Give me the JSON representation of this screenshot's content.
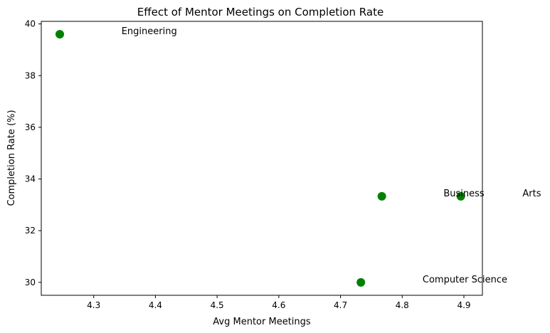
{
  "chart_data": {
    "type": "scatter",
    "title": "Effect of Mentor Meetings on Completion Rate",
    "xlabel": "Avg Mentor Meetings",
    "ylabel": "Completion Rate (%)",
    "xlim": [
      4.215,
      4.93
    ],
    "ylim": [
      29.5,
      40.1
    ],
    "xticks": [
      4.3,
      4.4,
      4.5,
      4.6,
      4.7,
      4.8,
      4.9
    ],
    "yticks": [
      30,
      32,
      34,
      36,
      38,
      40
    ],
    "xtick_labels": [
      "4.3",
      "4.4",
      "4.5",
      "4.6",
      "4.7",
      "4.8",
      "4.9"
    ],
    "ytick_labels": [
      "30",
      "32",
      "34",
      "36",
      "38",
      "40"
    ],
    "grid": false,
    "marker_color": "#008000",
    "points": [
      {
        "label": "Engineering",
        "x": 4.245,
        "y": 39.6
      },
      {
        "label": "Computer Science",
        "x": 4.733,
        "y": 30.0
      },
      {
        "label": "Business",
        "x": 4.767,
        "y": 33.33
      },
      {
        "label": "Arts",
        "x": 4.895,
        "y": 33.33
      }
    ]
  }
}
